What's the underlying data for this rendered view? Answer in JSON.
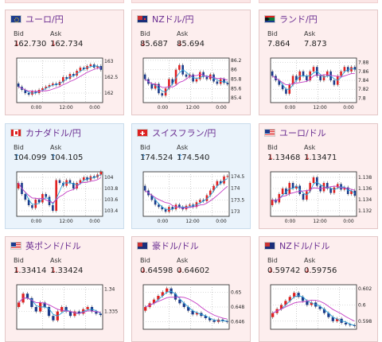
{
  "labels": {
    "bid": "Bid",
    "ask": "Ask"
  },
  "colors": {
    "down_card": "#fdeeee",
    "up_card": "#eaf3fb",
    "title": "#6a2d91",
    "down_arrow": "#d33333",
    "up_arrow": "#2a7fc8",
    "bull_candle": "#e02020",
    "bear_candle": "#1a3a8a",
    "ma_short": "#2aa0d8",
    "ma_long": "#c43bc4"
  },
  "cards": [
    {
      "name": "ユーロ/円",
      "flag_icon": "eu-flag-icon",
      "bid": "162.730",
      "ask": "162.734",
      "bid_dir": "down",
      "ask_dir": "down",
      "chart_data": {
        "type": "candlestick",
        "yticks": [
          "163",
          "162.5",
          "162"
        ],
        "xticks": [
          "0:00",
          "12:00",
          "0:00"
        ],
        "ylim": [
          161.7,
          163.1
        ],
        "candles": [
          [
            162.3,
            162.2
          ],
          [
            162.2,
            162.1
          ],
          [
            162.1,
            162.0
          ],
          [
            162.0,
            161.95
          ],
          [
            161.95,
            162.05
          ],
          [
            162.05,
            162.0
          ],
          [
            162.0,
            162.1
          ],
          [
            162.1,
            162.15
          ],
          [
            162.15,
            162.2
          ],
          [
            162.2,
            162.25
          ],
          [
            162.25,
            162.3
          ],
          [
            162.3,
            162.25
          ],
          [
            162.25,
            162.35
          ],
          [
            162.35,
            162.5
          ],
          [
            162.5,
            162.45
          ],
          [
            162.45,
            162.6
          ],
          [
            162.6,
            162.55
          ],
          [
            162.55,
            162.7
          ],
          [
            162.7,
            162.8
          ],
          [
            162.8,
            162.75
          ],
          [
            162.75,
            162.85
          ],
          [
            162.85,
            162.9
          ],
          [
            162.9,
            162.8
          ],
          [
            162.8,
            162.85
          ],
          [
            162.85,
            162.73
          ]
        ]
      }
    },
    {
      "name": "NZドル/円",
      "flag_icon": "nz-flag-icon",
      "bid": "85.687",
      "ask": "85.694",
      "bid_dir": "down",
      "ask_dir": "down",
      "chart_data": {
        "type": "candlestick",
        "yticks": [
          "86.2",
          "86",
          "85.8",
          "85.6",
          "85.4"
        ],
        "xticks": [
          "0:00",
          "12:00",
          "0:00"
        ],
        "ylim": [
          85.3,
          86.25
        ],
        "candles": [
          [
            85.9,
            85.8
          ],
          [
            85.8,
            85.7
          ],
          [
            85.7,
            85.6
          ],
          [
            85.6,
            85.7
          ],
          [
            85.7,
            85.5
          ],
          [
            85.5,
            85.45
          ],
          [
            85.45,
            85.6
          ],
          [
            85.6,
            85.8
          ],
          [
            85.8,
            85.7
          ],
          [
            85.7,
            86.0
          ],
          [
            86.0,
            86.1
          ],
          [
            86.1,
            85.9
          ],
          [
            85.9,
            85.85
          ],
          [
            85.85,
            85.9
          ],
          [
            85.9,
            85.75
          ],
          [
            85.75,
            85.8
          ],
          [
            85.8,
            85.95
          ],
          [
            85.95,
            85.85
          ],
          [
            85.85,
            85.8
          ],
          [
            85.8,
            85.9
          ],
          [
            85.9,
            85.75
          ],
          [
            85.75,
            85.7
          ],
          [
            85.7,
            85.8
          ],
          [
            85.8,
            85.72
          ],
          [
            85.72,
            85.69
          ]
        ]
      }
    },
    {
      "name": "ランド/円",
      "flag_icon": "za-flag-icon",
      "bid": "7.864",
      "ask": "7.873",
      "bid_dir": "none",
      "ask_dir": "none",
      "chart_data": {
        "type": "candlestick",
        "yticks": [
          "7.88",
          "7.86",
          "7.84",
          "7.82",
          "7.8"
        ],
        "xticks": [
          "0:00",
          "12:00",
          "0:00"
        ],
        "ylim": [
          7.79,
          7.89
        ],
        "candles": [
          [
            7.86,
            7.85
          ],
          [
            7.85,
            7.84
          ],
          [
            7.84,
            7.83
          ],
          [
            7.83,
            7.82
          ],
          [
            7.82,
            7.81
          ],
          [
            7.81,
            7.83
          ],
          [
            7.83,
            7.85
          ],
          [
            7.85,
            7.84
          ],
          [
            7.84,
            7.86
          ],
          [
            7.86,
            7.85
          ],
          [
            7.85,
            7.84
          ],
          [
            7.84,
            7.86
          ],
          [
            7.86,
            7.87
          ],
          [
            7.87,
            7.85
          ],
          [
            7.85,
            7.84
          ],
          [
            7.84,
            7.85
          ],
          [
            7.85,
            7.86
          ],
          [
            7.86,
            7.84
          ],
          [
            7.84,
            7.83
          ],
          [
            7.83,
            7.85
          ],
          [
            7.85,
            7.86
          ],
          [
            7.86,
            7.87
          ],
          [
            7.87,
            7.86
          ],
          [
            7.86,
            7.87
          ],
          [
            7.87,
            7.864
          ]
        ]
      }
    },
    {
      "name": "カナダドル/円",
      "flag_icon": "ca-flag-icon",
      "bid": "104.099",
      "ask": "104.105",
      "bid_dir": "up",
      "ask_dir": "up",
      "chart_data": {
        "type": "candlestick",
        "yticks": [
          "104",
          "103.8",
          "103.6",
          "103.4"
        ],
        "xticks": [
          "0:00",
          "12:00",
          "0:00"
        ],
        "ylim": [
          103.3,
          104.1
        ],
        "candles": [
          [
            103.8,
            103.9
          ],
          [
            103.9,
            103.7
          ],
          [
            103.7,
            103.6
          ],
          [
            103.6,
            103.5
          ],
          [
            103.5,
            103.45
          ],
          [
            103.45,
            103.6
          ],
          [
            103.6,
            103.55
          ],
          [
            103.55,
            103.7
          ],
          [
            103.7,
            103.65
          ],
          [
            103.65,
            103.5
          ],
          [
            103.5,
            103.4
          ],
          [
            103.4,
            103.95
          ],
          [
            103.95,
            103.9
          ],
          [
            103.9,
            103.85
          ],
          [
            103.85,
            103.95
          ],
          [
            103.95,
            103.9
          ],
          [
            103.9,
            103.8
          ],
          [
            103.8,
            103.9
          ],
          [
            103.9,
            103.95
          ],
          [
            103.95,
            104.0
          ],
          [
            104.0,
            103.95
          ],
          [
            103.95,
            104.02
          ],
          [
            104.02,
            104.0
          ],
          [
            104.0,
            104.05
          ],
          [
            104.05,
            104.1
          ]
        ]
      }
    },
    {
      "name": "スイスフラン/円",
      "flag_icon": "ch-flag-icon",
      "bid": "174.524",
      "ask": "174.540",
      "bid_dir": "up",
      "ask_dir": "up",
      "chart_data": {
        "type": "candlestick",
        "yticks": [
          "174.5",
          "174",
          "173.5",
          "173"
        ],
        "xticks": [
          "0:00",
          "12:00",
          "0:00"
        ],
        "ylim": [
          172.8,
          174.7
        ],
        "candles": [
          [
            174.1,
            173.9
          ],
          [
            173.9,
            173.7
          ],
          [
            173.7,
            173.5
          ],
          [
            173.5,
            173.3
          ],
          [
            173.3,
            173.2
          ],
          [
            173.2,
            173.1
          ],
          [
            173.1,
            173.0
          ],
          [
            173.0,
            173.2
          ],
          [
            173.2,
            173.1
          ],
          [
            173.1,
            173.3
          ],
          [
            173.3,
            173.2
          ],
          [
            173.2,
            173.1
          ],
          [
            173.1,
            173.25
          ],
          [
            173.25,
            173.3
          ],
          [
            173.3,
            173.2
          ],
          [
            173.2,
            173.4
          ],
          [
            173.4,
            173.5
          ],
          [
            173.5,
            173.45
          ],
          [
            173.45,
            173.7
          ],
          [
            173.7,
            173.9
          ],
          [
            173.9,
            174.1
          ],
          [
            174.1,
            174.3
          ],
          [
            174.3,
            174.2
          ],
          [
            174.2,
            174.5
          ],
          [
            174.5,
            174.52
          ]
        ]
      }
    },
    {
      "name": "ユーロ/ドル",
      "flag_icon": "eu-us-flag-icon",
      "bid": "1.13468",
      "ask": "1.13471",
      "bid_dir": "down",
      "ask_dir": "down",
      "chart_data": {
        "type": "candlestick",
        "yticks": [
          "1.138",
          "1.136",
          "1.134",
          "1.132"
        ],
        "xticks": [
          "0:00",
          "12:00",
          "0:00"
        ],
        "ylim": [
          1.131,
          1.139
        ],
        "candles": [
          [
            1.133,
            1.134
          ],
          [
            1.134,
            1.1335
          ],
          [
            1.1335,
            1.135
          ],
          [
            1.135,
            1.136
          ],
          [
            1.136,
            1.135
          ],
          [
            1.135,
            1.137
          ],
          [
            1.137,
            1.136
          ],
          [
            1.136,
            1.1365
          ],
          [
            1.1365,
            1.135
          ],
          [
            1.135,
            1.134
          ],
          [
            1.134,
            1.1355
          ],
          [
            1.1355,
            1.137
          ],
          [
            1.137,
            1.138
          ],
          [
            1.138,
            1.1365
          ],
          [
            1.1365,
            1.1355
          ],
          [
            1.1355,
            1.137
          ],
          [
            1.137,
            1.136
          ],
          [
            1.136,
            1.1352
          ],
          [
            1.1352,
            1.1362
          ],
          [
            1.1362,
            1.1368
          ],
          [
            1.1368,
            1.1358
          ],
          [
            1.1358,
            1.1362
          ],
          [
            1.1362,
            1.135
          ],
          [
            1.135,
            1.1356
          ],
          [
            1.1356,
            1.1347
          ]
        ]
      }
    },
    {
      "name": "英ポンド/ドル",
      "flag_icon": "gb-us-flag-icon",
      "bid": "1.33414",
      "ask": "1.33424",
      "bid_dir": "down",
      "ask_dir": "down",
      "chart_data": {
        "type": "candlestick",
        "yticks": [
          "1.34",
          "1.335"
        ],
        "xticks": [],
        "ylim": [
          1.331,
          1.341
        ],
        "candles": [
          [
            1.336,
            1.337
          ],
          [
            1.337,
            1.339
          ],
          [
            1.339,
            1.338
          ],
          [
            1.338,
            1.336
          ],
          [
            1.336,
            1.335
          ],
          [
            1.335,
            1.337
          ],
          [
            1.337,
            1.336
          ],
          [
            1.336,
            1.334
          ],
          [
            1.334,
            1.333
          ],
          [
            1.333,
            1.335
          ],
          [
            1.335,
            1.336
          ],
          [
            1.336,
            1.335
          ],
          [
            1.335,
            1.334
          ],
          [
            1.334,
            1.335
          ],
          [
            1.335,
            1.3345
          ],
          [
            1.3345,
            1.3355
          ],
          [
            1.3355,
            1.336
          ],
          [
            1.336,
            1.335
          ],
          [
            1.335,
            1.3345
          ],
          [
            1.3345,
            1.3342
          ]
        ]
      }
    },
    {
      "name": "豪ドル/ドル",
      "flag_icon": "au-us-flag-icon",
      "bid": "0.64598",
      "ask": "0.64602",
      "bid_dir": "down",
      "ask_dir": "down",
      "chart_data": {
        "type": "candlestick",
        "yticks": [
          "0.65",
          "0.648",
          "0.646"
        ],
        "xticks": [],
        "ylim": [
          0.645,
          0.651
        ],
        "candles": [
          [
            0.6475,
            0.648
          ],
          [
            0.648,
            0.6485
          ],
          [
            0.6485,
            0.649
          ],
          [
            0.649,
            0.6495
          ],
          [
            0.6495,
            0.65
          ],
          [
            0.65,
            0.6505
          ],
          [
            0.6505,
            0.6498
          ],
          [
            0.6498,
            0.649
          ],
          [
            0.649,
            0.6485
          ],
          [
            0.6485,
            0.648
          ],
          [
            0.648,
            0.6475
          ],
          [
            0.6475,
            0.647
          ],
          [
            0.647,
            0.6472
          ],
          [
            0.6472,
            0.6468
          ],
          [
            0.6468,
            0.6465
          ],
          [
            0.6465,
            0.6462
          ],
          [
            0.6462,
            0.646
          ],
          [
            0.646,
            0.6463
          ],
          [
            0.6463,
            0.6461
          ],
          [
            0.6461,
            0.646
          ]
        ]
      }
    },
    {
      "name": "NZドル/ドル",
      "flag_icon": "nz-us-flag-icon",
      "bid": "0.59742",
      "ask": "0.59756",
      "bid_dir": "down",
      "ask_dir": "down",
      "chart_data": {
        "type": "candlestick",
        "yticks": [
          "0.602",
          "0.6",
          "0.598"
        ],
        "xticks": [],
        "ylim": [
          0.597,
          0.6025
        ],
        "candles": [
          [
            0.5985,
            0.599
          ],
          [
            0.599,
            0.5995
          ],
          [
            0.5995,
            0.6
          ],
          [
            0.6,
            0.6005
          ],
          [
            0.6005,
            0.601
          ],
          [
            0.601,
            0.6015
          ],
          [
            0.6015,
            0.601
          ],
          [
            0.601,
            0.6005
          ],
          [
            0.6005,
            0.6
          ],
          [
            0.6,
            0.6003
          ],
          [
            0.6003,
            0.5998
          ],
          [
            0.5998,
            0.5995
          ],
          [
            0.5995,
            0.599
          ],
          [
            0.599,
            0.5985
          ],
          [
            0.5985,
            0.598
          ],
          [
            0.598,
            0.5983
          ],
          [
            0.5983,
            0.5978
          ],
          [
            0.5978,
            0.5976
          ],
          [
            0.5976,
            0.5975
          ],
          [
            0.5975,
            0.5974
          ]
        ]
      }
    }
  ]
}
